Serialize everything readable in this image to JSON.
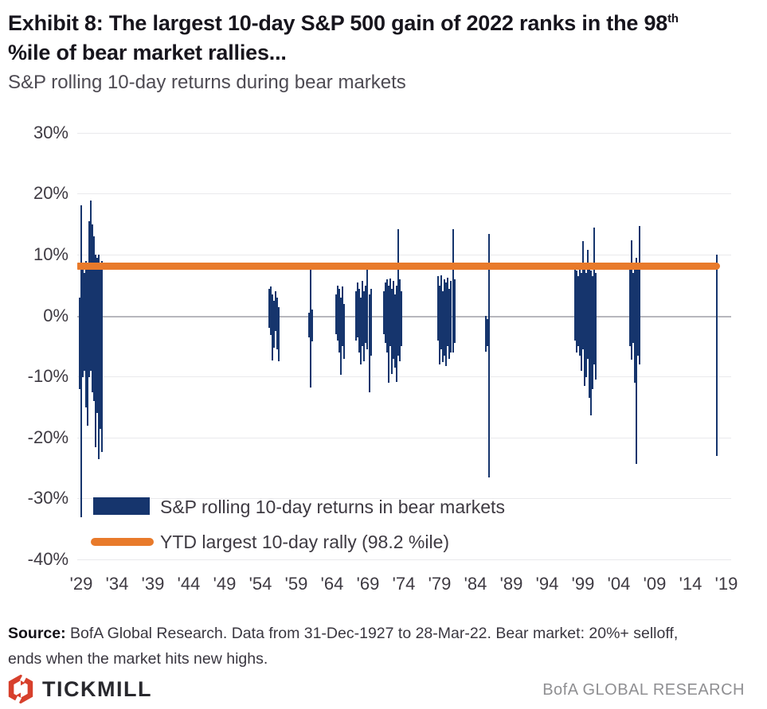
{
  "header": {
    "title_line1": "Exhibit 8: The largest 10-day S&P 500 gain of 2022 ranks in the 98",
    "title_superscript": "th",
    "title_line2": "%ile of bear market rallies...",
    "subtitle": "S&P rolling 10-day returns during bear markets"
  },
  "legend": {
    "series_label": "S&P rolling 10-day returns in bear markets",
    "reference_label": "YTD largest 10-day rally (98.2 %ile)"
  },
  "source": {
    "bold_label": "Source:",
    "line1_rest": " BofA Global Research. Data from 31-Dec-1927  to 28-Mar-22. Bear market: 20%+ selloff,",
    "line2": "ends when the market hits new highs."
  },
  "footer": {
    "tickmill_label": "TICKMILL",
    "bofa_label": "BofA GLOBAL RESEARCH"
  },
  "colors": {
    "bar_navy": "#16356d",
    "reference_orange": "#e87a2b",
    "tickmill_red": "#d7402c"
  },
  "chart_data": {
    "type": "bar",
    "title": "S&P rolling 10-day returns during bear markets",
    "ylim": [
      -40,
      30
    ],
    "y_tick_values": [
      30,
      20,
      10,
      0,
      -10,
      -20,
      -30,
      -40
    ],
    "y_tick_labels": [
      "30%",
      "20%",
      "10%",
      "0%",
      "-10%",
      "-20%",
      "-30%",
      "-40%"
    ],
    "x_tick_labels": [
      "'29",
      "'34",
      "'39",
      "'44",
      "'49",
      "'54",
      "'59",
      "'64",
      "'69",
      "'74",
      "'79",
      "'84",
      "'89",
      "'94",
      "'99",
      "'04",
      "'09",
      "'14",
      "'19"
    ],
    "grid": "horizontal-only",
    "legend_position": "bottom-left-inside",
    "reference_line": {
      "label": "YTD largest 10-day rally (98.2 %ile)",
      "value_pct": 8,
      "percentile": "98.2 %ile",
      "color": "#e87a2b"
    },
    "bear_market_clusters": [
      {
        "period": "1929-1932",
        "max_rally_pct": 19,
        "max_drawdown_pct": -33
      },
      {
        "period": "1956-1957",
        "max_rally_pct": 5,
        "max_drawdown_pct": -7.5
      },
      {
        "period": "1961-1962",
        "max_rally_pct": 8,
        "max_drawdown_pct": -12
      },
      {
        "period": "1966",
        "max_rally_pct": 5,
        "max_drawdown_pct": -10
      },
      {
        "period": "1968-1970",
        "max_rally_pct": 8,
        "max_drawdown_pct": -12.5
      },
      {
        "period": "1973-1974",
        "max_rally_pct": 14.5,
        "max_drawdown_pct": -11
      },
      {
        "period": "1980-1982",
        "max_rally_pct": 14.5,
        "max_drawdown_pct": -8.5
      },
      {
        "period": "1987",
        "max_rally_pct": 13.5,
        "max_drawdown_pct": -26.5
      },
      {
        "period": "2000-2002",
        "max_rally_pct": 14.5,
        "max_drawdown_pct": -16.5
      },
      {
        "period": "2007-2009",
        "max_rally_pct": 15,
        "max_drawdown_pct": -24.5
      },
      {
        "period": "2020",
        "max_rally_pct": 10,
        "max_drawdown_pct": -23
      }
    ],
    "series": [
      {
        "name": "S&P rolling 10-day returns in bear markets",
        "color": "#16356d",
        "bars_format": "[year_position, top_pct, bottom_pct]",
        "bars": [
          [
            1928.78,
            3.0,
            -12.0
          ],
          [
            1929.0,
            18.2,
            -33.0
          ],
          [
            1929.22,
            8.0,
            -10.0
          ],
          [
            1929.44,
            7.0,
            -9.0
          ],
          [
            1929.67,
            9.0,
            -15.0
          ],
          [
            1929.89,
            8.5,
            -18.0
          ],
          [
            1930.11,
            15.5,
            -10.0
          ],
          [
            1930.33,
            19.0,
            -9.0
          ],
          [
            1930.56,
            15.0,
            -12.5
          ],
          [
            1930.78,
            13.0,
            -14.0
          ],
          [
            1931.0,
            10.0,
            -21.5
          ],
          [
            1931.22,
            9.5,
            -16.0
          ],
          [
            1931.44,
            10.0,
            -23.5
          ],
          [
            1931.67,
            8.0,
            -18.5
          ],
          [
            1931.83,
            9.0,
            -22.3
          ],
          [
            1955.22,
            4.5,
            -2.0
          ],
          [
            1955.44,
            4.8,
            -3.2
          ],
          [
            1955.67,
            3.5,
            -7.3
          ],
          [
            1955.89,
            2.5,
            -5.2
          ],
          [
            1956.11,
            4.0,
            -2.5
          ],
          [
            1956.33,
            3.0,
            -5.5
          ],
          [
            1956.56,
            1.5,
            -7.5
          ],
          [
            1960.78,
            0.5,
            -3.5
          ],
          [
            1961.0,
            7.7,
            -11.7
          ],
          [
            1961.22,
            1.0,
            -4.2
          ],
          [
            1964.56,
            3.5,
            -3.0
          ],
          [
            1964.78,
            5.0,
            -4.0
          ],
          [
            1965.0,
            4.5,
            -6.0
          ],
          [
            1965.22,
            3.0,
            -9.7
          ],
          [
            1965.44,
            4.8,
            -5.0
          ],
          [
            1965.67,
            2.0,
            -7.0
          ],
          [
            1967.33,
            4.0,
            -4.0
          ],
          [
            1967.56,
            5.5,
            -3.5
          ],
          [
            1967.78,
            4.5,
            -6.0
          ],
          [
            1968.0,
            3.0,
            -8.0
          ],
          [
            1968.22,
            5.7,
            -5.0
          ],
          [
            1968.44,
            4.0,
            -7.5
          ],
          [
            1968.67,
            5.0,
            -4.5
          ],
          [
            1968.89,
            7.6,
            -5.5
          ],
          [
            1969.22,
            3.5,
            -12.5
          ],
          [
            1969.44,
            4.5,
            -6.5
          ],
          [
            1971.22,
            4.0,
            -3.0
          ],
          [
            1971.44,
            5.5,
            -4.5
          ],
          [
            1971.67,
            6.0,
            -6.0
          ],
          [
            1971.89,
            5.0,
            -11.0
          ],
          [
            1972.11,
            6.2,
            -5.0
          ],
          [
            1972.33,
            4.5,
            -9.5
          ],
          [
            1972.56,
            5.8,
            -7.0
          ],
          [
            1972.78,
            3.5,
            -8.5
          ],
          [
            1973.0,
            5.0,
            -10.8
          ],
          [
            1973.22,
            14.3,
            -6.5
          ],
          [
            1973.44,
            6.0,
            -7.5
          ],
          [
            1973.67,
            4.0,
            -5.0
          ],
          [
            1978.78,
            6.5,
            -4.0
          ],
          [
            1979.0,
            5.0,
            -8.0
          ],
          [
            1979.22,
            6.6,
            -5.5
          ],
          [
            1979.44,
            4.0,
            -7.6
          ],
          [
            1979.67,
            6.0,
            -6.5
          ],
          [
            1979.89,
            5.5,
            -8.2
          ],
          [
            1980.11,
            6.3,
            -5.0
          ],
          [
            1980.33,
            4.5,
            -7.0
          ],
          [
            1980.56,
            5.8,
            -6.0
          ],
          [
            1980.89,
            14.3,
            -6.0
          ],
          [
            1981.11,
            6.0,
            -4.5
          ],
          [
            1985.44,
            0.0,
            -5.9
          ],
          [
            1985.67,
            -0.5,
            -5.0
          ],
          [
            1985.89,
            13.4,
            -26.5
          ],
          [
            1997.89,
            8.0,
            -4.0
          ],
          [
            1998.11,
            7.5,
            -6.0
          ],
          [
            1998.33,
            6.5,
            -5.0
          ],
          [
            1998.56,
            7.8,
            -6.5
          ],
          [
            1998.78,
            7.0,
            -9.0
          ],
          [
            1999.0,
            12.3,
            -5.5
          ],
          [
            1999.22,
            8.0,
            -11.5
          ],
          [
            1999.44,
            7.0,
            -10.0
          ],
          [
            1999.67,
            10.8,
            -7.0
          ],
          [
            1999.89,
            8.0,
            -13.5
          ],
          [
            2000.11,
            7.5,
            -16.3
          ],
          [
            2000.33,
            6.5,
            -12.0
          ],
          [
            2000.56,
            14.5,
            -8.0
          ],
          [
            2000.78,
            7.0,
            -10.5
          ],
          [
            2005.56,
            8.0,
            -5.0
          ],
          [
            2005.78,
            12.4,
            -7.2
          ],
          [
            2006.0,
            7.0,
            -4.5
          ],
          [
            2006.22,
            8.3,
            -11.0
          ],
          [
            2006.44,
            9.5,
            -24.3
          ],
          [
            2006.67,
            7.8,
            -6.5
          ],
          [
            2006.89,
            14.8,
            -8.0
          ],
          [
            2017.67,
            10.1,
            -23.0
          ]
        ]
      }
    ]
  }
}
